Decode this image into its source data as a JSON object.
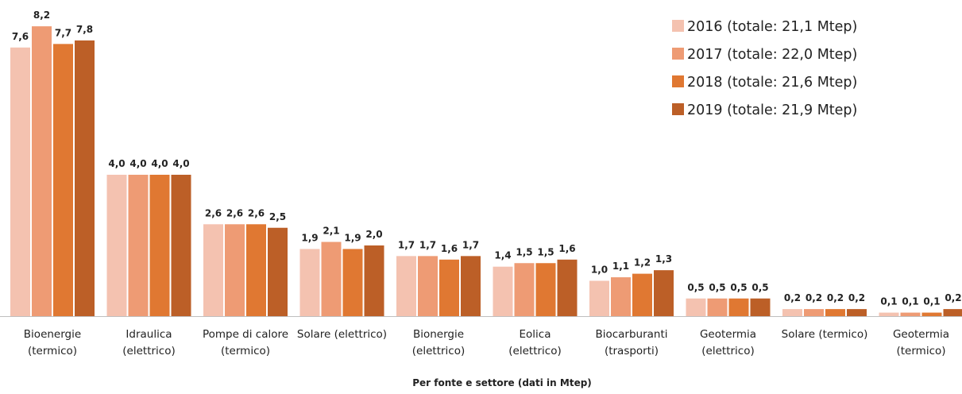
{
  "chart_data": {
    "type": "bar",
    "xlabel": "Per fonte e settore  (dati in Mtep)",
    "ylabel": "",
    "ylim": [
      0,
      8.4
    ],
    "grid": false,
    "legend_position": "top-right",
    "categories": [
      [
        "Bioenergie",
        "(termico)"
      ],
      [
        "Idraulica",
        "(elettrico)"
      ],
      [
        "Pompe di calore",
        "(termico)"
      ],
      [
        "Solare (elettrico)"
      ],
      [
        "Bionergie",
        "(elettrico)"
      ],
      [
        "Eolica",
        "(elettrico)"
      ],
      [
        "Biocarburanti",
        "(trasporti)"
      ],
      [
        "Geotermia",
        "(elettrico)"
      ],
      [
        "Solare (termico)"
      ],
      [
        "Geotermia",
        "(termico)"
      ]
    ],
    "series": [
      {
        "name": "2016 (totale: 21,1 Mtep)",
        "color": "#F4C2B0",
        "values": [
          7.6,
          4.0,
          2.6,
          1.9,
          1.7,
          1.4,
          1.0,
          0.5,
          0.2,
          0.1
        ],
        "labels": [
          "7,6",
          "4,0",
          "2,6",
          "1,9",
          "1,7",
          "1,4",
          "1,0",
          "0,5",
          "0,2",
          "0,1"
        ]
      },
      {
        "name": "2017 (totale: 22,0 Mtep)",
        "color": "#EE9B74",
        "values": [
          8.2,
          4.0,
          2.6,
          2.1,
          1.7,
          1.5,
          1.1,
          0.5,
          0.2,
          0.1
        ],
        "labels": [
          "8,2",
          "4,0",
          "2,6",
          "2,1",
          "1,7",
          "1,5",
          "1,1",
          "0,5",
          "0,2",
          "0,1"
        ]
      },
      {
        "name": "2018 (totale: 21,6 Mtep)",
        "color": "#E07832",
        "values": [
          7.7,
          4.0,
          2.6,
          1.9,
          1.6,
          1.5,
          1.2,
          0.5,
          0.2,
          0.1
        ],
        "labels": [
          "7,7",
          "4,0",
          "2,6",
          "1,9",
          "1,6",
          "1,5",
          "1,2",
          "0,5",
          "0,2",
          "0,1"
        ]
      },
      {
        "name": "2019 (totale: 21,9 Mtep)",
        "color": "#BC5F27",
        "values": [
          7.8,
          4.0,
          2.5,
          2.0,
          1.7,
          1.6,
          1.3,
          0.5,
          0.2,
          0.2
        ],
        "labels": [
          "7,8",
          "4,0",
          "2,5",
          "2,0",
          "1,7",
          "1,6",
          "1,3",
          "0,5",
          "0,2",
          "0,2"
        ]
      }
    ]
  }
}
